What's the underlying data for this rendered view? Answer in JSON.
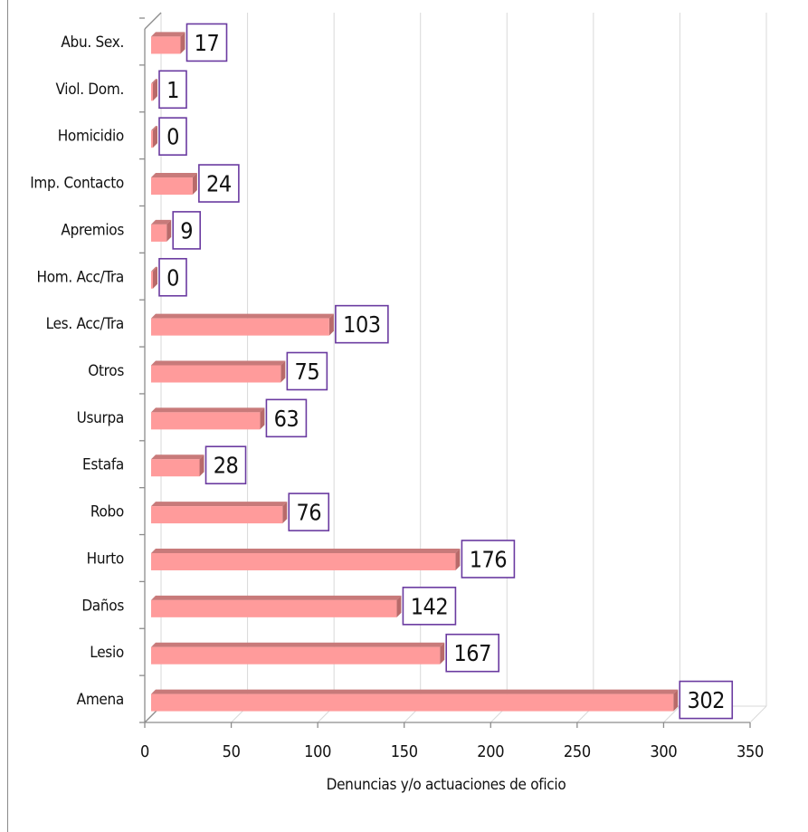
{
  "chart_data": {
    "type": "bar",
    "orientation": "horizontal",
    "categories": [
      "Amena",
      "Lesio",
      "Daños",
      "Hurto",
      "Robo",
      "Estafa",
      "Usurpa",
      "Otros",
      "Les. Acc/Tra",
      "Hom. Acc/Tra",
      "Apremios",
      "Imp. Contacto",
      "Homicidio",
      "Viol. Dom.",
      "Abu. Sex."
    ],
    "values": [
      302,
      167,
      142,
      176,
      76,
      28,
      63,
      75,
      103,
      0,
      9,
      24,
      0,
      1,
      17
    ],
    "xlabel": "Denuncias y/o actuaciones de oficio",
    "ylabel": "",
    "xlim": [
      0,
      350
    ],
    "xticks": [
      0,
      50,
      100,
      150,
      200,
      250,
      300,
      350
    ],
    "grid": true,
    "legend": "none",
    "data_labels": true,
    "colors": {
      "bar_front": "#ff9b9b",
      "bar_top": "#c87a7a",
      "bar_side": "#b86a6a",
      "label_border": "#6a3aa0",
      "grid": "#d9d9d9",
      "axis": "#8c8c8c"
    }
  }
}
